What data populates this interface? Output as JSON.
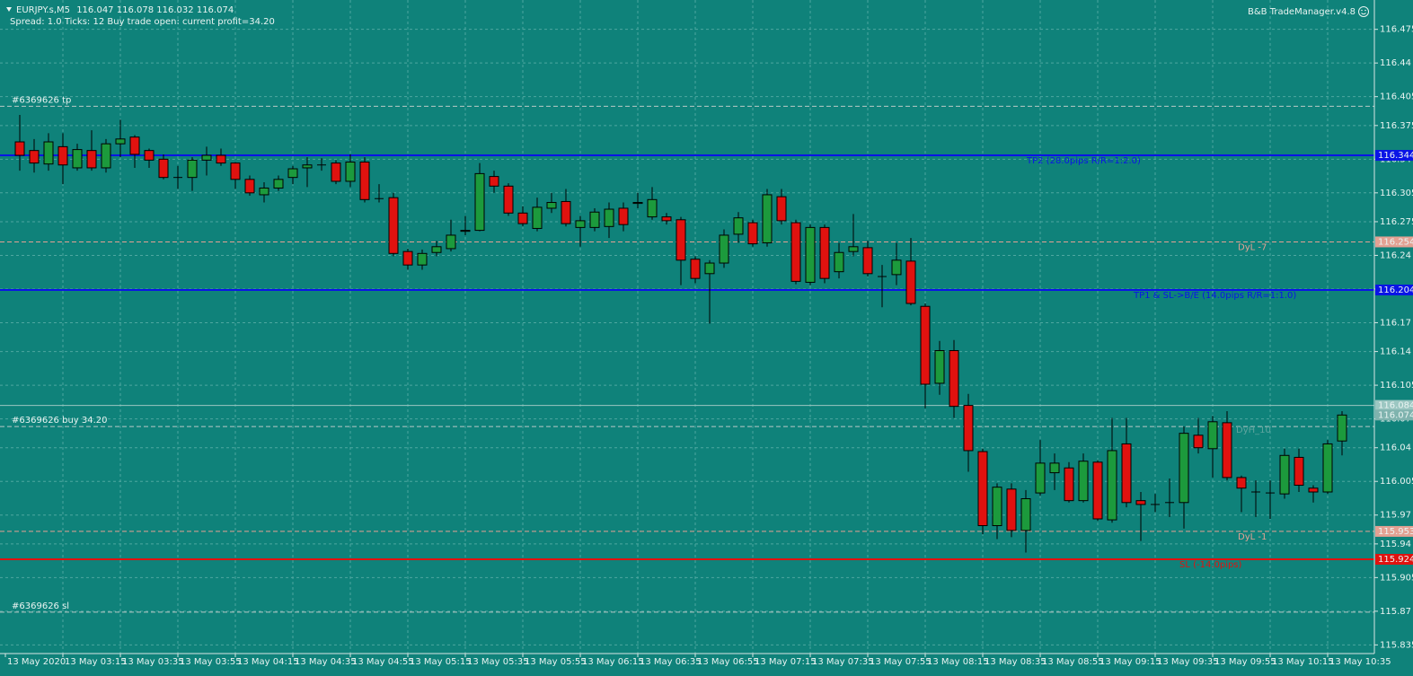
{
  "chart_data": {
    "type": "candlestick",
    "symbol": "EURJPY.s,M5",
    "info": "Spread: 1.0  Ticks: 12  Buy trade open: current profit=34.20",
    "brand": "B&B TradeManager.v4.8",
    "up_color": "#1c9a3c",
    "down_color": "#e0120f",
    "open": [
      116.358,
      116.349,
      116.335,
      116.353,
      116.331,
      116.349,
      116.331,
      116.356,
      116.363,
      116.349,
      116.34,
      116.321,
      116.321,
      116.339,
      116.344,
      116.336,
      116.319,
      116.303,
      116.31,
      116.321,
      116.331,
      116.334,
      116.336,
      116.317,
      116.337,
      116.299,
      116.3,
      116.244,
      116.23,
      116.243,
      116.247,
      116.265,
      116.266,
      116.322,
      116.312,
      116.284,
      116.268,
      116.289,
      116.296,
      116.269,
      116.269,
      116.27,
      116.289,
      116.294,
      116.28,
      116.28,
      116.277,
      116.236,
      116.221,
      116.232,
      116.262,
      116.274,
      116.253,
      116.301,
      116.274,
      116.212,
      116.269,
      116.223,
      116.244,
      116.248,
      116.218,
      116.22,
      116.234,
      116.187,
      116.107,
      116.141,
      116.084,
      116.036,
      115.959,
      115.997,
      115.954,
      115.993,
      116.014,
      116.019,
      115.985,
      116.025,
      115.965,
      116.044,
      115.985,
      115.981,
      115.983,
      115.983,
      116.053,
      116.039,
      116.066,
      116.009,
      115.994,
      115.993,
      115.992,
      116.03,
      115.998,
      115.994,
      116.047
    ],
    "high": [
      116.386,
      116.361,
      116.367,
      116.367,
      116.356,
      116.37,
      116.361,
      116.381,
      116.365,
      116.351,
      116.345,
      116.333,
      116.342,
      116.353,
      116.351,
      116.337,
      116.323,
      116.316,
      116.323,
      116.333,
      116.342,
      116.341,
      116.339,
      116.345,
      116.342,
      116.314,
      116.305,
      116.247,
      116.246,
      116.255,
      116.277,
      116.281,
      116.336,
      116.328,
      116.315,
      116.291,
      116.3,
      116.305,
      116.309,
      116.281,
      116.289,
      116.295,
      116.295,
      116.305,
      116.311,
      116.284,
      116.28,
      116.239,
      116.235,
      116.267,
      116.285,
      116.277,
      116.309,
      116.309,
      116.277,
      116.272,
      116.272,
      116.253,
      116.283,
      116.255,
      116.23,
      116.253,
      116.258,
      116.19,
      116.151,
      116.152,
      116.096,
      116.039,
      116.003,
      116.003,
      115.996,
      116.048,
      116.034,
      116.025,
      116.034,
      116.027,
      116.071,
      116.071,
      115.994,
      115.992,
      116.008,
      116.062,
      116.071,
      116.073,
      116.078,
      116.011,
      116.006,
      116.006,
      116.039,
      116.039,
      116.001,
      116.048,
      116.078
    ],
    "low": [
      116.328,
      116.326,
      116.328,
      116.314,
      116.328,
      116.328,
      116.326,
      116.342,
      116.331,
      116.331,
      116.319,
      116.309,
      116.307,
      116.323,
      116.333,
      116.309,
      116.302,
      116.295,
      116.307,
      116.314,
      116.311,
      116.328,
      116.314,
      116.311,
      116.295,
      116.295,
      116.239,
      116.225,
      116.225,
      116.239,
      116.244,
      116.261,
      116.265,
      116.305,
      116.281,
      116.27,
      116.265,
      116.284,
      116.27,
      116.249,
      116.265,
      116.258,
      116.265,
      116.289,
      116.277,
      116.272,
      116.209,
      116.211,
      116.169,
      116.227,
      116.253,
      116.249,
      116.249,
      116.272,
      116.21,
      116.209,
      116.211,
      116.216,
      116.239,
      116.218,
      116.186,
      116.209,
      116.188,
      116.081,
      116.095,
      116.071,
      116.015,
      115.95,
      115.945,
      115.947,
      115.931,
      115.99,
      115.996,
      115.983,
      115.983,
      115.964,
      115.962,
      115.978,
      115.943,
      115.973,
      115.968,
      115.956,
      116.034,
      116.009,
      116.006,
      115.973,
      115.968,
      115.966,
      115.987,
      115.994,
      115.983,
      115.992,
      116.032
    ],
    "close": [
      116.344,
      116.336,
      116.358,
      116.334,
      116.35,
      116.331,
      116.356,
      116.361,
      116.345,
      116.339,
      116.321,
      116.321,
      116.339,
      116.344,
      116.336,
      116.319,
      116.305,
      116.31,
      116.319,
      116.33,
      116.334,
      116.334,
      116.317,
      116.337,
      116.298,
      116.299,
      116.242,
      116.23,
      116.242,
      116.249,
      116.261,
      116.266,
      116.325,
      116.312,
      116.284,
      116.273,
      116.29,
      116.295,
      116.273,
      116.276,
      116.285,
      116.288,
      116.272,
      116.295,
      116.298,
      116.276,
      116.235,
      116.216,
      116.232,
      116.261,
      116.279,
      116.252,
      116.303,
      116.276,
      116.213,
      116.269,
      116.216,
      116.243,
      116.249,
      116.221,
      116.218,
      116.235,
      116.19,
      116.106,
      116.141,
      116.083,
      116.037,
      115.959,
      115.999,
      115.954,
      115.987,
      116.024,
      116.024,
      115.985,
      116.026,
      115.966,
      116.037,
      115.983,
      115.981,
      115.981,
      115.983,
      116.055,
      116.04,
      116.067,
      116.009,
      115.998,
      115.994,
      115.993,
      116.032,
      116.001,
      115.994,
      116.044,
      116.074
    ],
    "ylim": [
      115.826,
      116.5055
    ],
    "yticks": [
      116.475,
      116.44,
      116.405,
      116.375,
      116.34,
      116.305,
      116.275,
      116.24,
      116.205,
      116.17,
      116.14,
      116.105,
      116.07,
      116.04,
      116.005,
      115.97,
      115.94,
      115.905,
      115.87,
      115.835
    ],
    "grid": true,
    "time_labels": [
      "13 May 2020",
      "13 May 03:15",
      "13 May 03:35",
      "13 May 03:55",
      "13 May 04:15",
      "13 May 04:35",
      "13 May 04:55",
      "13 May 05:15",
      "13 May 05:35",
      "13 May 05:55",
      "13 May 06:15",
      "13 May 06:35",
      "13 May 06:55",
      "13 May 07:15",
      "13 May 07:35",
      "13 May 07:55",
      "13 May 08:15",
      "13 May 08:35",
      "13 May 08:55",
      "13 May 09:15",
      "13 May 09:35",
      "13 May 09:55",
      "13 May 10:15",
      "13 May 10:35"
    ],
    "levels": [
      {
        "label": "#6369626 tp",
        "price": 116.395,
        "color": "#b9c9c6",
        "style": "dash",
        "side": "left"
      },
      {
        "label": "TP2 (28.0pips R/R=1:2.0)",
        "price": 116.344,
        "color": "#0a14e6",
        "style": "solid",
        "side": "right",
        "show_price": true
      },
      {
        "label": "DyL -7",
        "price": 116.254,
        "color": "#e3a193",
        "style": "dash",
        "side": "right",
        "show_price": true
      },
      {
        "label": "TP1 & SL->B/E (14.0pips R/R=1:1.0)",
        "price": 116.204,
        "color": "#0a14e6",
        "style": "solid",
        "side": "right",
        "show_price": true
      },
      {
        "price": 116.084,
        "color": "#9cc7c2",
        "style": "thin",
        "show_price": true
      },
      {
        "price": 116.074,
        "color": "#7fb3ae",
        "style": "none",
        "show_price": true
      },
      {
        "label": "#6369626 buy 34.20",
        "price": 116.062,
        "color": "#b9c9c6",
        "style": "dash",
        "side": "left"
      },
      {
        "label": "DyH_10",
        "price": 116.064,
        "color": "#5fa59f",
        "style": "none",
        "side": "right"
      },
      {
        "label": "DyL -1",
        "price": 115.953,
        "color": "#e3a193",
        "style": "dash",
        "side": "right",
        "show_price": true
      },
      {
        "label": "SL (-14.0pips)",
        "price": 115.924,
        "color": "#e0120f",
        "style": "solid",
        "side": "right",
        "show_price": true
      },
      {
        "label": "#6369626 sl",
        "price": 115.869,
        "color": "#b9c9c6",
        "style": "dash",
        "side": "left"
      }
    ]
  }
}
